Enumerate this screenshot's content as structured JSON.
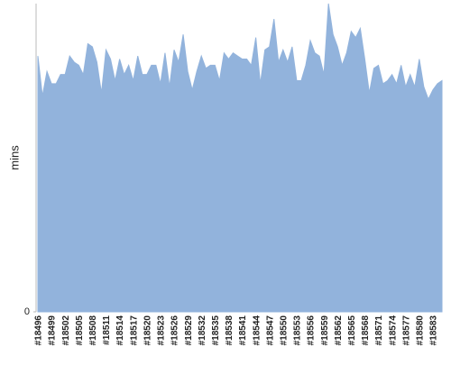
{
  "chart_data": {
    "type": "area",
    "y_label": "mins",
    "color": "#92b3dc",
    "categories": [
      "#18496",
      null,
      null,
      "#18499",
      null,
      null,
      "#18502",
      null,
      null,
      "#18505",
      null,
      null,
      "#18508",
      null,
      null,
      "#18511",
      null,
      null,
      "#18514",
      null,
      null,
      "#18517",
      null,
      null,
      "#18520",
      null,
      null,
      "#18523",
      null,
      null,
      "#18526",
      null,
      null,
      "#18529",
      null,
      null,
      "#18532",
      null,
      null,
      "#18535",
      null,
      null,
      "#18538",
      null,
      null,
      "#18541",
      null,
      null,
      "#18544",
      null,
      null,
      "#18547",
      null,
      null,
      "#18550",
      null,
      null,
      "#18553",
      null,
      null,
      "#18556",
      null,
      null,
      "#18559",
      null,
      null,
      "#18562",
      null,
      null,
      "#18565",
      null,
      null,
      "#18568",
      null,
      null,
      "#18571",
      null,
      null,
      "#18574",
      null,
      null,
      "#18577",
      null,
      null,
      "#18580",
      null,
      null,
      "#18583",
      null,
      null
    ],
    "values": [
      83,
      70,
      78,
      74,
      74,
      77,
      77,
      83,
      81,
      80,
      77,
      87,
      86,
      81,
      71,
      85,
      82,
      75,
      82,
      77,
      80,
      75,
      83,
      77,
      77,
      80,
      80,
      74,
      84,
      73,
      85,
      81,
      90,
      78,
      72,
      78,
      83,
      79,
      80,
      80,
      75,
      84,
      82,
      84,
      83,
      82,
      82,
      80,
      89,
      74,
      85,
      86,
      95,
      81,
      85,
      81,
      86,
      75,
      75,
      80,
      88,
      84,
      83,
      77,
      100,
      90,
      86,
      80,
      84,
      91,
      89,
      92,
      82,
      71,
      79,
      80,
      74,
      75,
      77,
      74,
      80,
      73,
      77,
      73,
      82,
      73,
      69,
      72,
      74,
      75
    ],
    "ylim": [
      0,
      100
    ],
    "yticks": [
      0
    ]
  }
}
